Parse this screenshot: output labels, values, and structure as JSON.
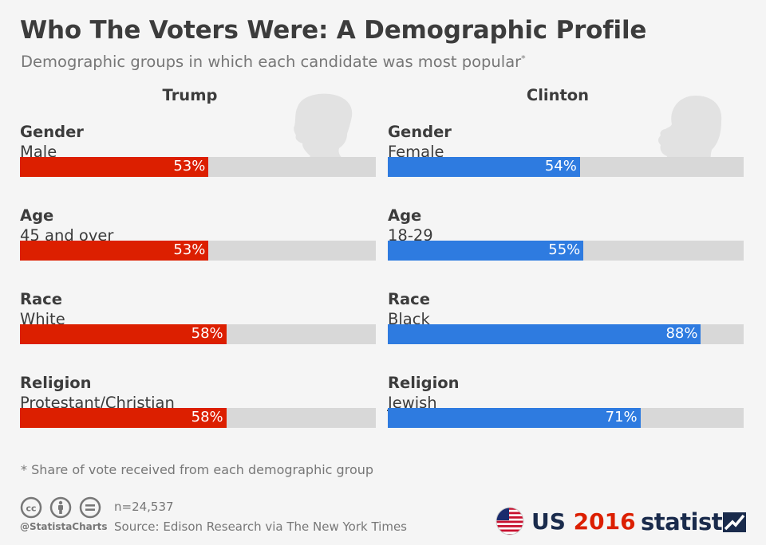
{
  "header": {
    "title": "Who The Voters Were: A Demographic Profile",
    "subtitle": "Demographic groups in which each candidate was most popular",
    "subtitle_mark": "*"
  },
  "colors": {
    "trump": "#dc1f00",
    "clinton": "#2e7be0",
    "track": "#d8d8d8",
    "silhouette": "#e2e2e2"
  },
  "chart_data": [
    {
      "type": "bar",
      "title": "Trump",
      "xlim": [
        0,
        100
      ],
      "groups": [
        {
          "label": "Gender",
          "category": "Male",
          "value": 53,
          "display": "53%"
        },
        {
          "label": "Age",
          "category": "45 and over",
          "value": 53,
          "display": "53%"
        },
        {
          "label": "Race",
          "category": "White",
          "value": 58,
          "display": "58%"
        },
        {
          "label": "Religion",
          "category": "Protestant/Christian",
          "value": 58,
          "display": "58%"
        }
      ]
    },
    {
      "type": "bar",
      "title": "Clinton",
      "xlim": [
        0,
        100
      ],
      "groups": [
        {
          "label": "Gender",
          "category": "Female",
          "value": 54,
          "display": "54%"
        },
        {
          "label": "Age",
          "category": "18-29",
          "value": 55,
          "display": "55%"
        },
        {
          "label": "Race",
          "category": "Black",
          "value": 88,
          "display": "88%"
        },
        {
          "label": "Religion",
          "category": "Jewish",
          "value": 71,
          "display": "71%"
        }
      ]
    }
  ],
  "footer": {
    "footnote": "* Share of vote received from each demographic group",
    "handle": "@StatistaCharts",
    "sample": "n=24,537",
    "source": "Source: Edison Research via The New York Times",
    "badge_us": "US",
    "badge_year": "2016",
    "brand": "statista",
    "icons": [
      "creative-commons-icon",
      "attribution-icon",
      "no-derivatives-icon",
      "us-flag-icon",
      "statista-logo-icon"
    ]
  }
}
